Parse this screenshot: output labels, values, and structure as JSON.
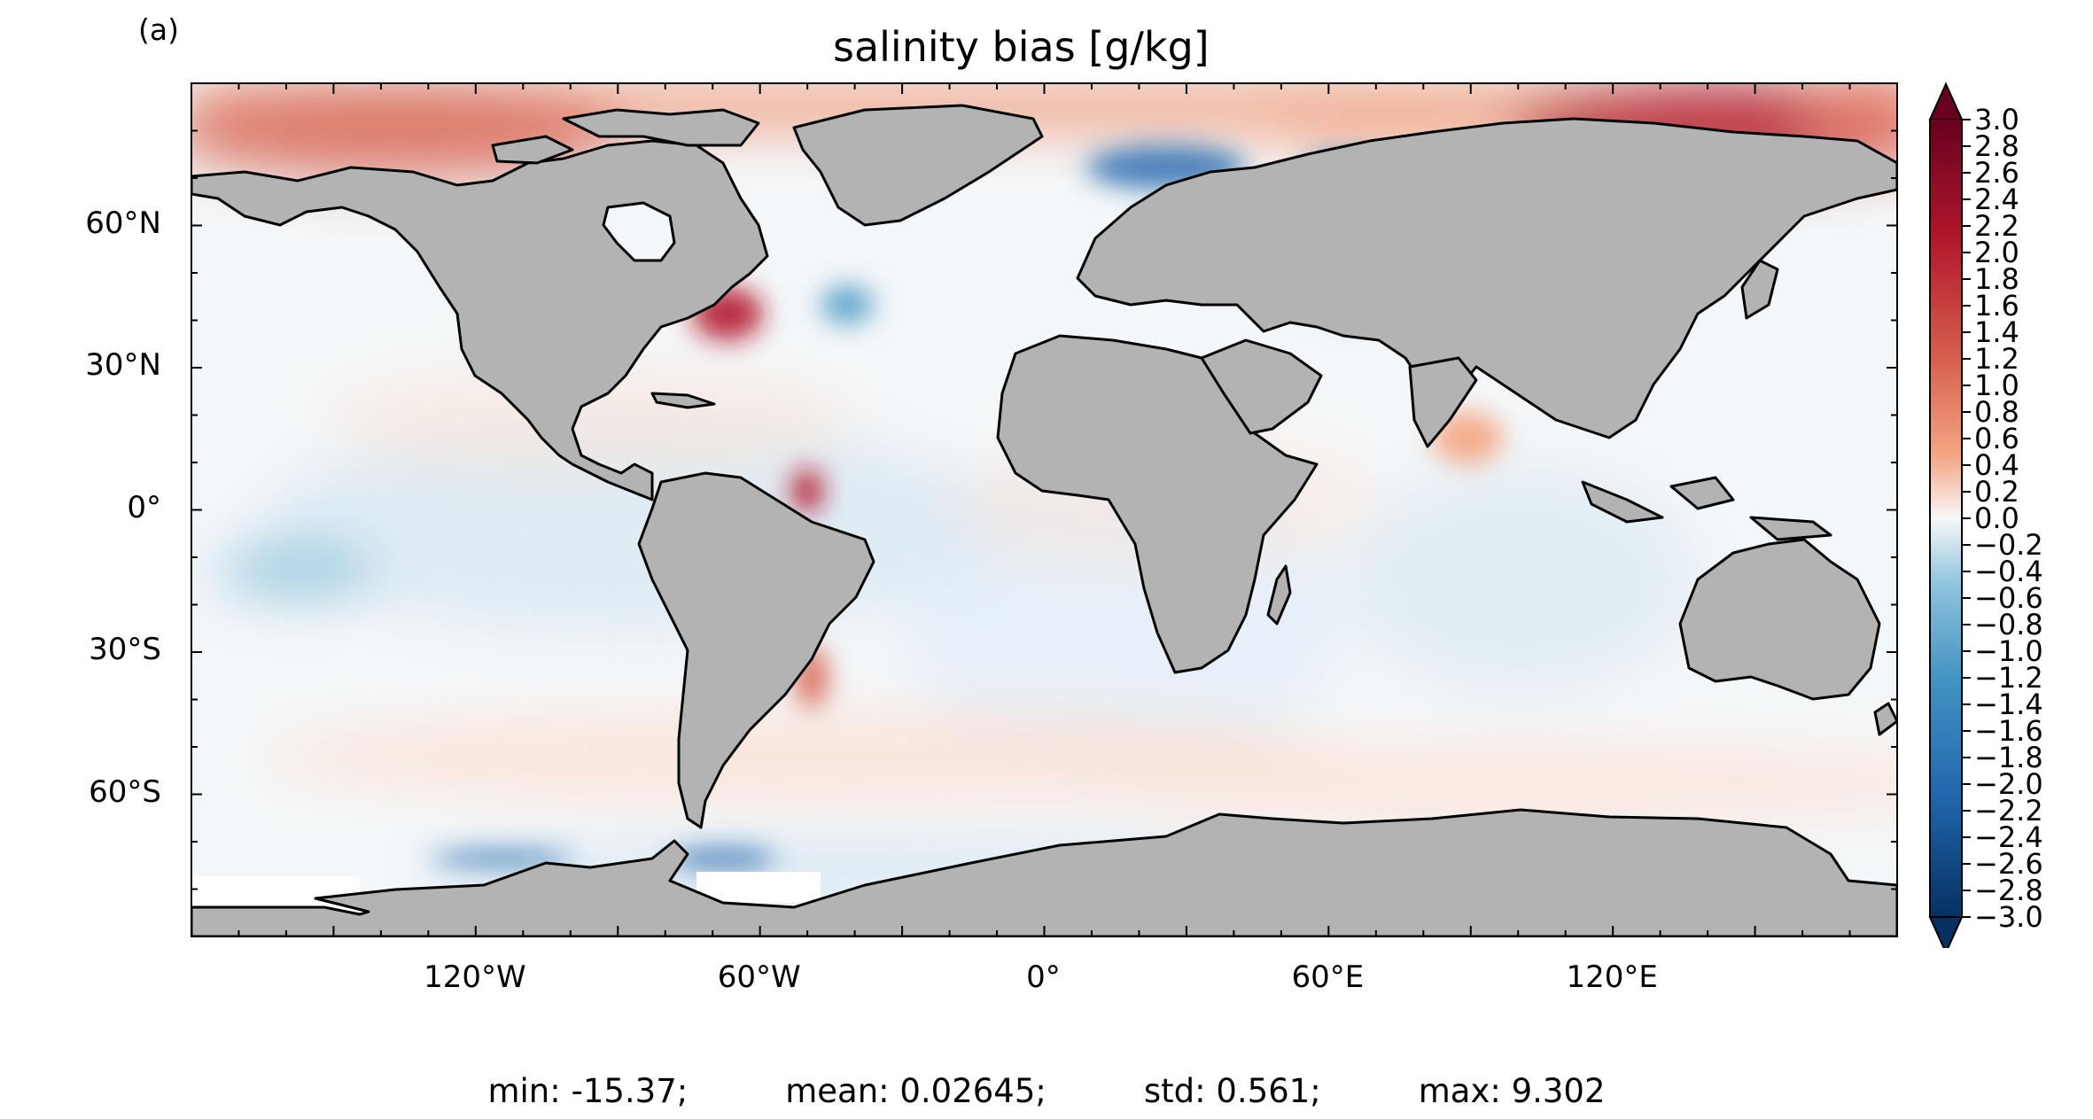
{
  "panel_label": "(a)",
  "title": "salinity bias [g/kg]",
  "map": {
    "projection": "PlateCarree",
    "extent": {
      "lon": [
        -180,
        180
      ],
      "lat": [
        -90,
        90
      ]
    },
    "land_color": "#b3b3b3",
    "coastline_color": "#000000",
    "lat_ticks": [
      {
        "value": 60,
        "label": "60°N"
      },
      {
        "value": 30,
        "label": "30°N"
      },
      {
        "value": 0,
        "label": "0°"
      },
      {
        "value": -30,
        "label": "30°S"
      },
      {
        "value": -60,
        "label": "60°S"
      }
    ],
    "lon_ticks": [
      {
        "value": -120,
        "label": "120°W"
      },
      {
        "value": -60,
        "label": "60°W"
      },
      {
        "value": 0,
        "label": "0°"
      },
      {
        "value": 60,
        "label": "60°E"
      },
      {
        "value": 120,
        "label": "120°E"
      }
    ]
  },
  "colorbar": {
    "colormap": "RdBu_r",
    "range": [
      -3.0,
      3.0
    ],
    "extend": "both",
    "tick_labels": [
      "3.0",
      "2.8",
      "2.6",
      "2.4",
      "2.2",
      "2.0",
      "1.8",
      "1.6",
      "1.4",
      "1.2",
      "1.0",
      "0.8",
      "0.6",
      "0.4",
      "0.2",
      "0.0",
      "−0.2",
      "−0.4",
      "−0.6",
      "−0.8",
      "−1.0",
      "−1.2",
      "−1.4",
      "−1.6",
      "−1.8",
      "−2.0",
      "−2.2",
      "−2.4",
      "−2.6",
      "−2.8",
      "−3.0"
    ],
    "colors": {
      "max": "#67001f",
      "high": "#d6604d",
      "mid": "#f7f7f7",
      "low": "#4393c3",
      "min": "#053061"
    }
  },
  "stats": {
    "min": "min: -15.37;",
    "mean": "mean: 0.02645;",
    "std": "std: 0.561;",
    "max": "max: 9.302"
  }
}
